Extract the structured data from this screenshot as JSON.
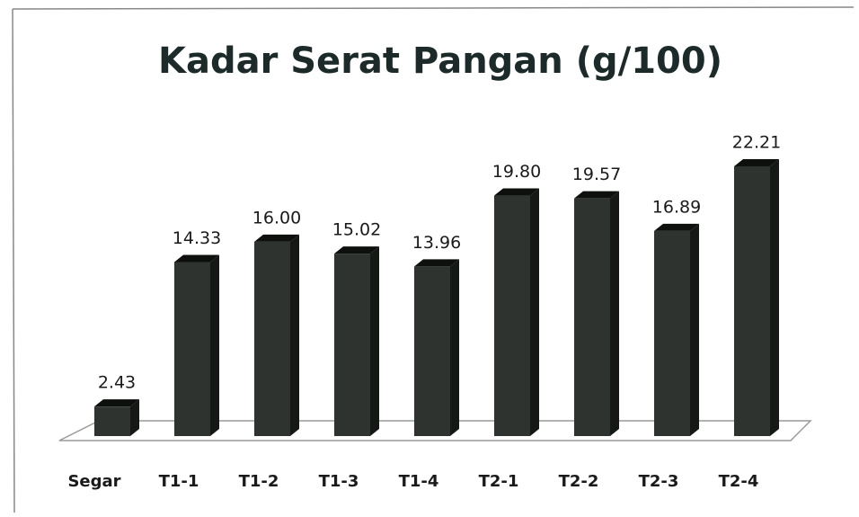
{
  "chart_data": {
    "type": "bar3d",
    "title": "Kadar Serat Pangan  (g/100)",
    "categories": [
      "Segar",
      "T1-1",
      "T1-2",
      "T1-3",
      "T1-4",
      "T2-1",
      "T2-2",
      "T2-3",
      "T2-4"
    ],
    "values": [
      2.43,
      14.33,
      16.0,
      15.02,
      13.96,
      19.8,
      19.57,
      16.89,
      22.21
    ],
    "value_labels": [
      "2.43",
      "14.33",
      "16.00",
      "15.02",
      "13.96",
      "19.80",
      "19.57",
      "16.89",
      "22.21"
    ],
    "color": "#2e332f"
  }
}
